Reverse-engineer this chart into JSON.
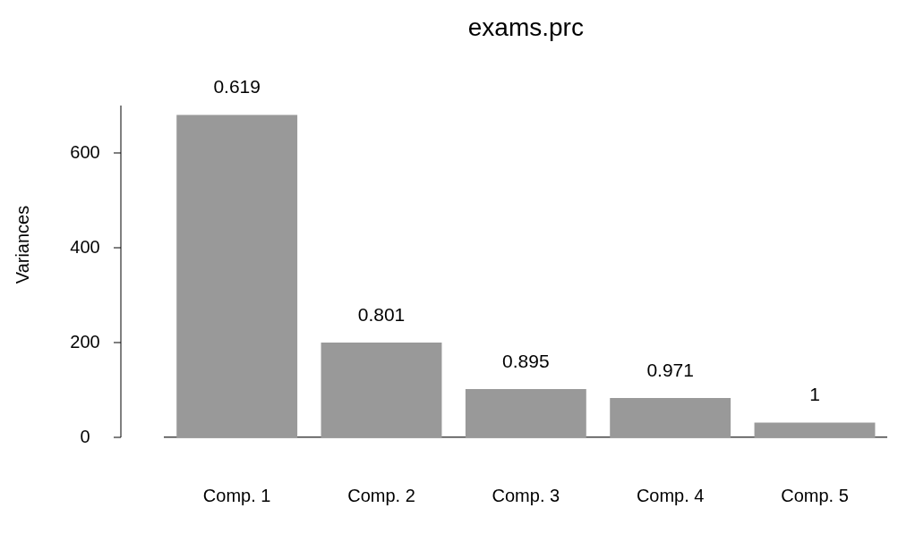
{
  "chart_data": {
    "type": "bar",
    "title": "exams.prc",
    "ylabel": "Variances",
    "categories": [
      "Comp. 1",
      "Comp. 2",
      "Comp. 3",
      "Comp. 4",
      "Comp. 5"
    ],
    "values": [
      680,
      200,
      102,
      83,
      31
    ],
    "annotations": [
      {
        "text": "0.619",
        "x": "Comp. 1",
        "y": 680
      },
      {
        "text": "0.801",
        "x": "Comp. 2",
        "y": 200
      },
      {
        "text": "0.895",
        "x": "Comp. 3",
        "y": 102
      },
      {
        "text": "0.971",
        "x": "Comp. 4",
        "y": 83
      },
      {
        "text": "1",
        "x": "Comp. 5",
        "y": 31
      }
    ],
    "color": "#999999",
    "ylim": [
      0,
      700
    ],
    "yticks": [
      0,
      200,
      400,
      600
    ],
    "grid": false,
    "legend": false
  }
}
